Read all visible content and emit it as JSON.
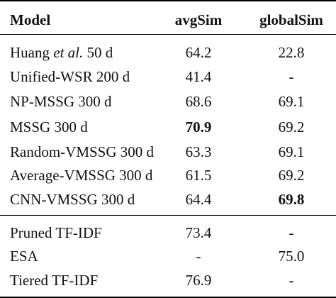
{
  "table": {
    "headers": {
      "model": "Model",
      "avgSim": "avgSim",
      "globalSim": "globalSim"
    },
    "group1": [
      {
        "model_prefix": "Huang ",
        "model_italic": "et al.",
        "model_suffix": " 50 d",
        "avgSim": "64.2",
        "globalSim": "22.8"
      },
      {
        "model": "Unified-WSR 200 d",
        "avgSim": "41.4",
        "globalSim": "-"
      },
      {
        "model": "NP-MSSG 300 d",
        "avgSim": "68.6",
        "globalSim": "69.1"
      },
      {
        "model": "MSSG 300 d",
        "avgSim": "70.9",
        "globalSim": "69.2",
        "bold": "avgSim"
      },
      {
        "model": "Random-VMSSG 300 d",
        "avgSim": "63.3",
        "globalSim": "69.1"
      },
      {
        "model": "Average-VMSSG 300 d",
        "avgSim": "61.5",
        "globalSim": "69.2"
      },
      {
        "model": "CNN-VMSSG 300 d",
        "avgSim": "64.4",
        "globalSim": "69.8",
        "bold": "globalSim"
      }
    ],
    "group2": [
      {
        "model": "Pruned TF-IDF",
        "avgSim": "73.4",
        "globalSim": "-"
      },
      {
        "model": "ESA",
        "avgSim": "-",
        "globalSim": "75.0"
      },
      {
        "model": "Tiered TF-IDF",
        "avgSim": "76.9",
        "globalSim": "-"
      }
    ]
  }
}
